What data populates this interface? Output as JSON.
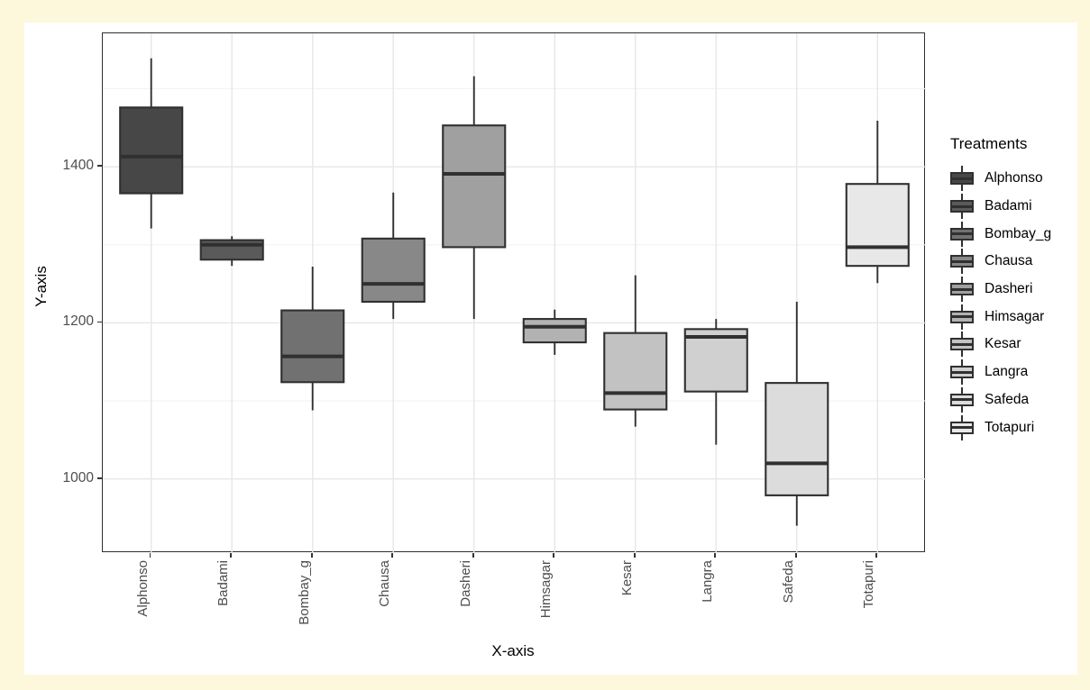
{
  "chart_data": {
    "type": "boxplot",
    "title": "",
    "xlabel": "X-axis",
    "ylabel": "Y-axis",
    "legend_title": "Treatments",
    "legend_position": "right",
    "grid": true,
    "y_ticks": [
      1000,
      1200,
      1400
    ],
    "y_minor_gridlines": [
      1100,
      1300,
      1500
    ],
    "ylim": [
      905,
      1571
    ],
    "categories": [
      "Alphonso",
      "Badami",
      "Bombay_g",
      "Chausa",
      "Dasheri",
      "Himsagar",
      "Kesar",
      "Langra",
      "Safeda",
      "Totapuri"
    ],
    "boxes": [
      {
        "label": "Alphonso",
        "fill": "#474747",
        "whisker_low": 1321,
        "q1": 1366,
        "median": 1413,
        "q3": 1476,
        "whisker_high": 1539
      },
      {
        "label": "Badami",
        "fill": "#5a5a5a",
        "whisker_low": 1273,
        "q1": 1281,
        "median": 1300,
        "q3": 1306,
        "whisker_high": 1311
      },
      {
        "label": "Bombay_g",
        "fill": "#717171",
        "whisker_low": 1088,
        "q1": 1124,
        "median": 1157,
        "q3": 1216,
        "whisker_high": 1272
      },
      {
        "label": "Chausa",
        "fill": "#888888",
        "whisker_low": 1205,
        "q1": 1227,
        "median": 1250,
        "q3": 1308,
        "whisker_high": 1367
      },
      {
        "label": "Dasheri",
        "fill": "#a0a0a0",
        "whisker_low": 1205,
        "q1": 1297,
        "median": 1391,
        "q3": 1453,
        "whisker_high": 1516
      },
      {
        "label": "Himsagar",
        "fill": "#b2b2b2",
        "whisker_low": 1159,
        "q1": 1175,
        "median": 1195,
        "q3": 1205,
        "whisker_high": 1217
      },
      {
        "label": "Kesar",
        "fill": "#c2c2c2",
        "whisker_low": 1067,
        "q1": 1089,
        "median": 1110,
        "q3": 1187,
        "whisker_high": 1261
      },
      {
        "label": "Langra",
        "fill": "#d0d0d0",
        "whisker_low": 1044,
        "q1": 1112,
        "median": 1182,
        "q3": 1192,
        "whisker_high": 1205
      },
      {
        "label": "Safeda",
        "fill": "#dcdcdc",
        "whisker_low": 940,
        "q1": 979,
        "median": 1020,
        "q3": 1123,
        "whisker_high": 1227
      },
      {
        "label": "Totapuri",
        "fill": "#e8e8e8",
        "whisker_low": 1251,
        "q1": 1273,
        "median": 1297,
        "q3": 1378,
        "whisker_high": 1459
      }
    ],
    "colors": {
      "frame_background": "#fdf8dc",
      "panel_background": "#ffffff",
      "panel_border": "#2e2e2e",
      "box_stroke": "#303030",
      "major_grid": "#e7e7e7",
      "minor_grid": "#f2f2f2",
      "tick_text": "#4d4d4d",
      "tick_mark": "#333333"
    }
  }
}
